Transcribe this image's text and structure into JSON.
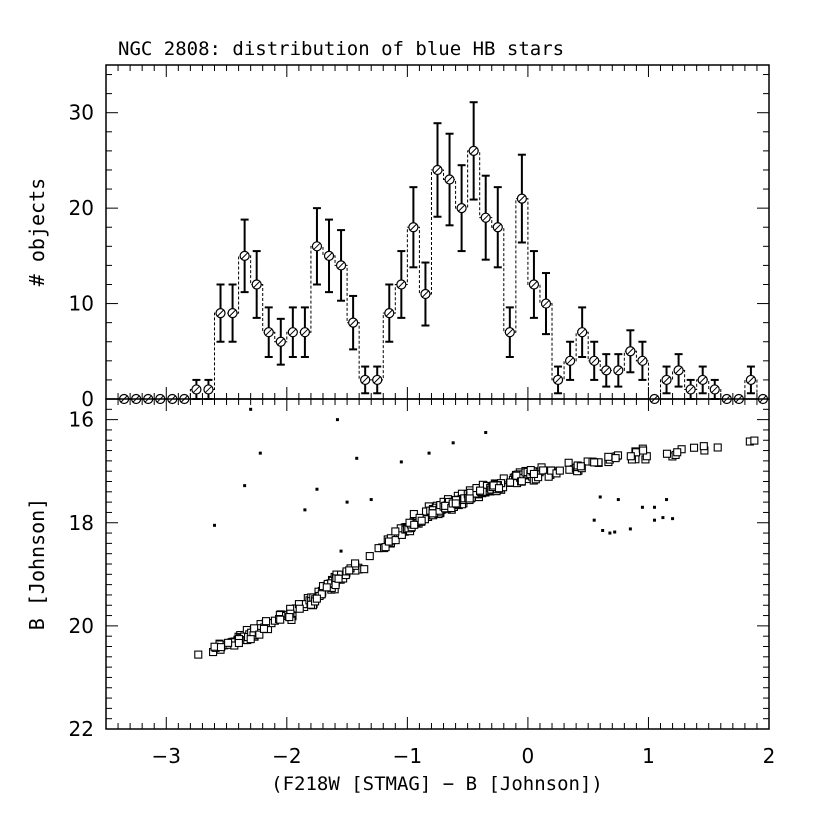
{
  "chart_data": [
    {
      "type": "histogram",
      "title": "NGC 2808: distribution of blue HB stars",
      "ylabel": "# objects",
      "xlim": [
        -3.5,
        2.0
      ],
      "ylim": [
        0,
        35
      ],
      "x_ticks": [
        -3,
        -2,
        -1,
        0,
        1,
        2
      ],
      "y_ticks": [
        0,
        10,
        20,
        30
      ],
      "bin_width": 0.1,
      "bins": [
        {
          "x": -3.35,
          "y": 0,
          "err": 0
        },
        {
          "x": -3.25,
          "y": 0,
          "err": 0
        },
        {
          "x": -3.15,
          "y": 0,
          "err": 0
        },
        {
          "x": -3.05,
          "y": 0,
          "err": 0
        },
        {
          "x": -2.95,
          "y": 0,
          "err": 0
        },
        {
          "x": -2.85,
          "y": 0,
          "err": 0
        },
        {
          "x": -2.75,
          "y": 1,
          "err": 1
        },
        {
          "x": -2.65,
          "y": 1,
          "err": 1
        },
        {
          "x": -2.55,
          "y": 9,
          "err": 3
        },
        {
          "x": -2.45,
          "y": 9,
          "err": 3
        },
        {
          "x": -2.35,
          "y": 15,
          "err": 3.8
        },
        {
          "x": -2.25,
          "y": 12,
          "err": 3.5
        },
        {
          "x": -2.15,
          "y": 7,
          "err": 2.6
        },
        {
          "x": -2.05,
          "y": 6,
          "err": 2.4
        },
        {
          "x": -1.95,
          "y": 7,
          "err": 2.6
        },
        {
          "x": -1.85,
          "y": 7,
          "err": 2.6
        },
        {
          "x": -1.75,
          "y": 16,
          "err": 4
        },
        {
          "x": -1.65,
          "y": 15,
          "err": 3.8
        },
        {
          "x": -1.55,
          "y": 14,
          "err": 3.7
        },
        {
          "x": -1.45,
          "y": 8,
          "err": 2.8
        },
        {
          "x": -1.35,
          "y": 2,
          "err": 1.4
        },
        {
          "x": -1.25,
          "y": 2,
          "err": 1.4
        },
        {
          "x": -1.15,
          "y": 9,
          "err": 3
        },
        {
          "x": -1.05,
          "y": 12,
          "err": 3.5
        },
        {
          "x": -0.95,
          "y": 18,
          "err": 4.2
        },
        {
          "x": -0.85,
          "y": 11,
          "err": 3.3
        },
        {
          "x": -0.75,
          "y": 24,
          "err": 4.9
        },
        {
          "x": -0.65,
          "y": 23,
          "err": 4.8
        },
        {
          "x": -0.55,
          "y": 20,
          "err": 4.5
        },
        {
          "x": -0.45,
          "y": 26,
          "err": 5.1
        },
        {
          "x": -0.35,
          "y": 19,
          "err": 4.4
        },
        {
          "x": -0.25,
          "y": 18,
          "err": 4.2
        },
        {
          "x": -0.15,
          "y": 7,
          "err": 2.6
        },
        {
          "x": -0.05,
          "y": 21,
          "err": 4.6
        },
        {
          "x": 0.05,
          "y": 12,
          "err": 3.5
        },
        {
          "x": 0.15,
          "y": 10,
          "err": 3.2
        },
        {
          "x": 0.25,
          "y": 2,
          "err": 1.4
        },
        {
          "x": 0.35,
          "y": 4,
          "err": 2
        },
        {
          "x": 0.45,
          "y": 7,
          "err": 2.6
        },
        {
          "x": 0.55,
          "y": 4,
          "err": 2
        },
        {
          "x": 0.65,
          "y": 3,
          "err": 1.7
        },
        {
          "x": 0.75,
          "y": 3,
          "err": 1.7
        },
        {
          "x": 0.85,
          "y": 5,
          "err": 2.2
        },
        {
          "x": 0.95,
          "y": 4,
          "err": 2
        },
        {
          "x": 1.05,
          "y": 0,
          "err": 0
        },
        {
          "x": 1.15,
          "y": 2,
          "err": 1.4
        },
        {
          "x": 1.25,
          "y": 3,
          "err": 1.7
        },
        {
          "x": 1.35,
          "y": 1,
          "err": 1
        },
        {
          "x": 1.45,
          "y": 2,
          "err": 1.4
        },
        {
          "x": 1.55,
          "y": 1,
          "err": 1
        },
        {
          "x": 1.65,
          "y": 0,
          "err": 0
        },
        {
          "x": 1.75,
          "y": 0,
          "err": 0
        },
        {
          "x": 1.85,
          "y": 2,
          "err": 1.4
        },
        {
          "x": 1.95,
          "y": 0,
          "err": 0
        }
      ]
    },
    {
      "type": "scatter",
      "xlabel": "(F218W [STMAG] − B [Johnson])",
      "ylabel": "B [Johnson]",
      "xlim": [
        -3.5,
        2.0
      ],
      "ylim": [
        22,
        15.6
      ],
      "y_inverted": true,
      "x_ticks": [
        -3,
        -2,
        -1,
        0,
        1,
        2
      ],
      "y_ticks": [
        16,
        18,
        20,
        22
      ],
      "hb_locus": [
        [
          -3.0,
          20.55
        ],
        [
          -2.8,
          20.55
        ],
        [
          -2.6,
          20.45
        ],
        [
          -2.4,
          20.25
        ],
        [
          -2.2,
          20.05
        ],
        [
          -2.0,
          19.8
        ],
        [
          -1.8,
          19.5
        ],
        [
          -1.6,
          19.15
        ],
        [
          -1.4,
          18.85
        ],
        [
          -1.2,
          18.45
        ],
        [
          -1.0,
          18.1
        ],
        [
          -0.8,
          17.8
        ],
        [
          -0.6,
          17.6
        ],
        [
          -0.4,
          17.4
        ],
        [
          -0.2,
          17.25
        ],
        [
          0.0,
          17.05
        ],
        [
          0.2,
          17.0
        ],
        [
          0.4,
          16.9
        ],
        [
          0.6,
          16.8
        ],
        [
          0.8,
          16.72
        ],
        [
          1.0,
          16.65
        ],
        [
          1.2,
          16.6
        ],
        [
          1.4,
          16.55
        ],
        [
          1.6,
          16.5
        ],
        [
          1.85,
          16.45
        ]
      ],
      "faint_points": [
        [
          -2.3,
          15.8
        ],
        [
          -1.58,
          16.0
        ],
        [
          -2.22,
          16.65
        ],
        [
          -1.42,
          16.75
        ],
        [
          -2.35,
          17.28
        ],
        [
          -1.75,
          17.35
        ],
        [
          -1.85,
          17.75
        ],
        [
          -1.5,
          17.6
        ],
        [
          -1.3,
          17.55
        ],
        [
          -2.6,
          18.05
        ],
        [
          -1.55,
          18.55
        ],
        [
          -0.62,
          16.45
        ],
        [
          -0.35,
          16.25
        ],
        [
          -0.82,
          16.65
        ],
        [
          -1.05,
          16.82
        ],
        [
          0.55,
          17.95
        ],
        [
          0.62,
          18.15
        ],
        [
          0.68,
          18.2
        ],
        [
          0.72,
          18.18
        ],
        [
          0.85,
          18.12
        ],
        [
          1.05,
          17.95
        ],
        [
          1.12,
          17.9
        ],
        [
          1.2,
          17.92
        ],
        [
          0.95,
          17.7
        ],
        [
          1.05,
          17.7
        ],
        [
          1.15,
          17.55
        ],
        [
          0.6,
          17.5
        ],
        [
          0.75,
          17.55
        ]
      ]
    }
  ]
}
